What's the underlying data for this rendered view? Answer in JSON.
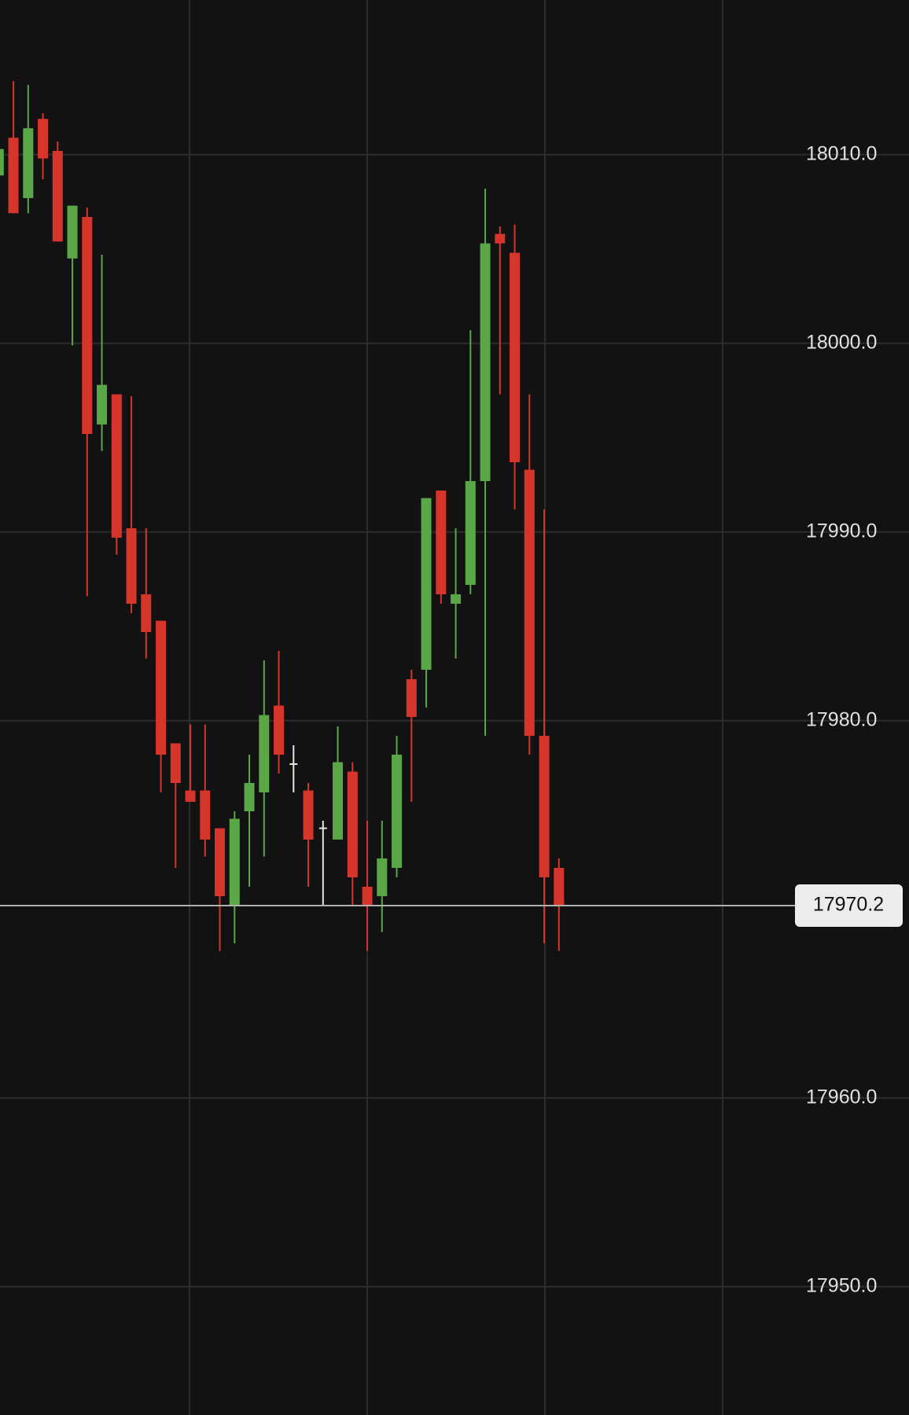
{
  "chart_data": {
    "type": "candlestick",
    "colors": {
      "up": "#5aa747",
      "down": "#d6352b",
      "flat": "#e6e6e6"
    },
    "open": [
      18008.9,
      18010.9,
      18007.7,
      18011.9,
      18010.2,
      18004.5,
      18006.7,
      17995.7,
      17997.3,
      17990.2,
      17986.7,
      17985.3,
      17978.8,
      17976.3,
      17976.3,
      17974.3,
      17970.2,
      17975.2,
      17976.2,
      17980.8,
      17977.7,
      17976.3,
      17974.3,
      17973.7,
      17977.3,
      17971.2,
      17970.7,
      17972.2,
      17982.2,
      17982.7,
      17992.2,
      17986.2,
      17987.2,
      17992.7,
      18005.8,
      18004.8,
      17993.3,
      17979.2,
      17972.2
    ],
    "high": [
      18010.5,
      18013.9,
      18013.7,
      18012.2,
      18010.7,
      18007.3,
      18007.2,
      18004.7,
      17997.3,
      17997.2,
      17990.2,
      17985.3,
      17978.8,
      17979.8,
      17979.8,
      17974.3,
      17975.2,
      17978.2,
      17983.2,
      17983.7,
      17978.7,
      17976.7,
      17974.7,
      17979.7,
      17977.8,
      17974.7,
      17974.7,
      17979.2,
      17982.7,
      17991.8,
      17992.2,
      17990.2,
      18000.7,
      18008.2,
      18006.2,
      18006.3,
      17997.3,
      17991.2,
      17972.7
    ],
    "low": [
      18008.7,
      18006.9,
      18006.9,
      18008.7,
      18005.4,
      17999.9,
      17986.6,
      17994.3,
      17988.8,
      17985.7,
      17983.3,
      17976.2,
      17972.2,
      17975.7,
      17972.8,
      17967.8,
      17968.2,
      17971.2,
      17972.8,
      17977.2,
      17976.2,
      17971.2,
      17970.2,
      17973.7,
      17970.2,
      17967.8,
      17968.8,
      17971.7,
      17975.7,
      17980.7,
      17986.2,
      17983.3,
      17986.7,
      17979.2,
      17997.3,
      17991.2,
      17978.2,
      17968.2,
      17967.8
    ],
    "close": [
      18010.3,
      18006.9,
      18011.4,
      18009.8,
      18005.4,
      18007.3,
      17995.2,
      17997.8,
      17989.7,
      17986.2,
      17984.7,
      17978.2,
      17976.7,
      17975.7,
      17973.7,
      17970.7,
      17974.8,
      17976.7,
      17980.3,
      17978.2,
      17977.7,
      17973.7,
      17974.3,
      17977.8,
      17971.7,
      17970.2,
      17972.7,
      17978.2,
      17980.2,
      17991.8,
      17986.7,
      17986.7,
      17992.7,
      18005.3,
      18005.3,
      17993.7,
      17979.2,
      17971.7,
      17970.2
    ],
    "ylim": [
      17943.2,
      18018.2
    ],
    "yticks": [
      {
        "value": 17950,
        "label": "17950.0"
      },
      {
        "value": 17960,
        "label": "17960.0"
      },
      {
        "value": 17980,
        "label": "17980.0"
      },
      {
        "value": 17990,
        "label": "17990.0"
      },
      {
        "value": 18000,
        "label": "18000.0"
      },
      {
        "value": 18010,
        "label": "18010.0"
      }
    ],
    "grid": true,
    "last_price": 17970.2
  }
}
